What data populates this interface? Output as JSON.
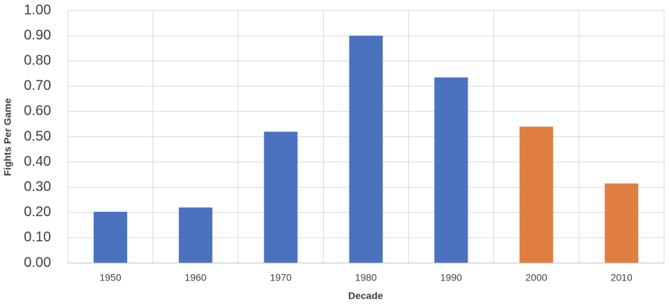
{
  "chart_data": {
    "type": "bar",
    "x_label": "Decade",
    "y_label": "Fights Per Game",
    "categories": [
      "1950",
      "1960",
      "1970",
      "1980",
      "1990",
      "2000",
      "2010"
    ],
    "values": [
      0.203,
      0.22,
      0.52,
      0.9,
      0.735,
      0.54,
      0.315
    ],
    "colors": [
      "#4a72bf",
      "#4a72bf",
      "#4a72bf",
      "#4a72bf",
      "#4a72bf",
      "#e07f41",
      "#e07f41"
    ],
    "ylim": [
      0,
      1
    ],
    "yticks": [
      {
        "value": 0,
        "label": "0.00"
      },
      {
        "value": 0.1,
        "label": "0.10"
      },
      {
        "value": 0.2,
        "label": "0.20"
      },
      {
        "value": 0.3,
        "label": "0.30"
      },
      {
        "value": 0.4,
        "label": "0.40"
      },
      {
        "value": 0.5,
        "label": "0.50"
      },
      {
        "value": 0.6,
        "label": "0.60"
      },
      {
        "value": 0.7,
        "label": "0.70"
      },
      {
        "value": 0.8,
        "label": "0.80"
      },
      {
        "value": 0.9,
        "label": "0.90"
      },
      {
        "value": 1,
        "label": "1.00"
      }
    ],
    "grid": true
  }
}
